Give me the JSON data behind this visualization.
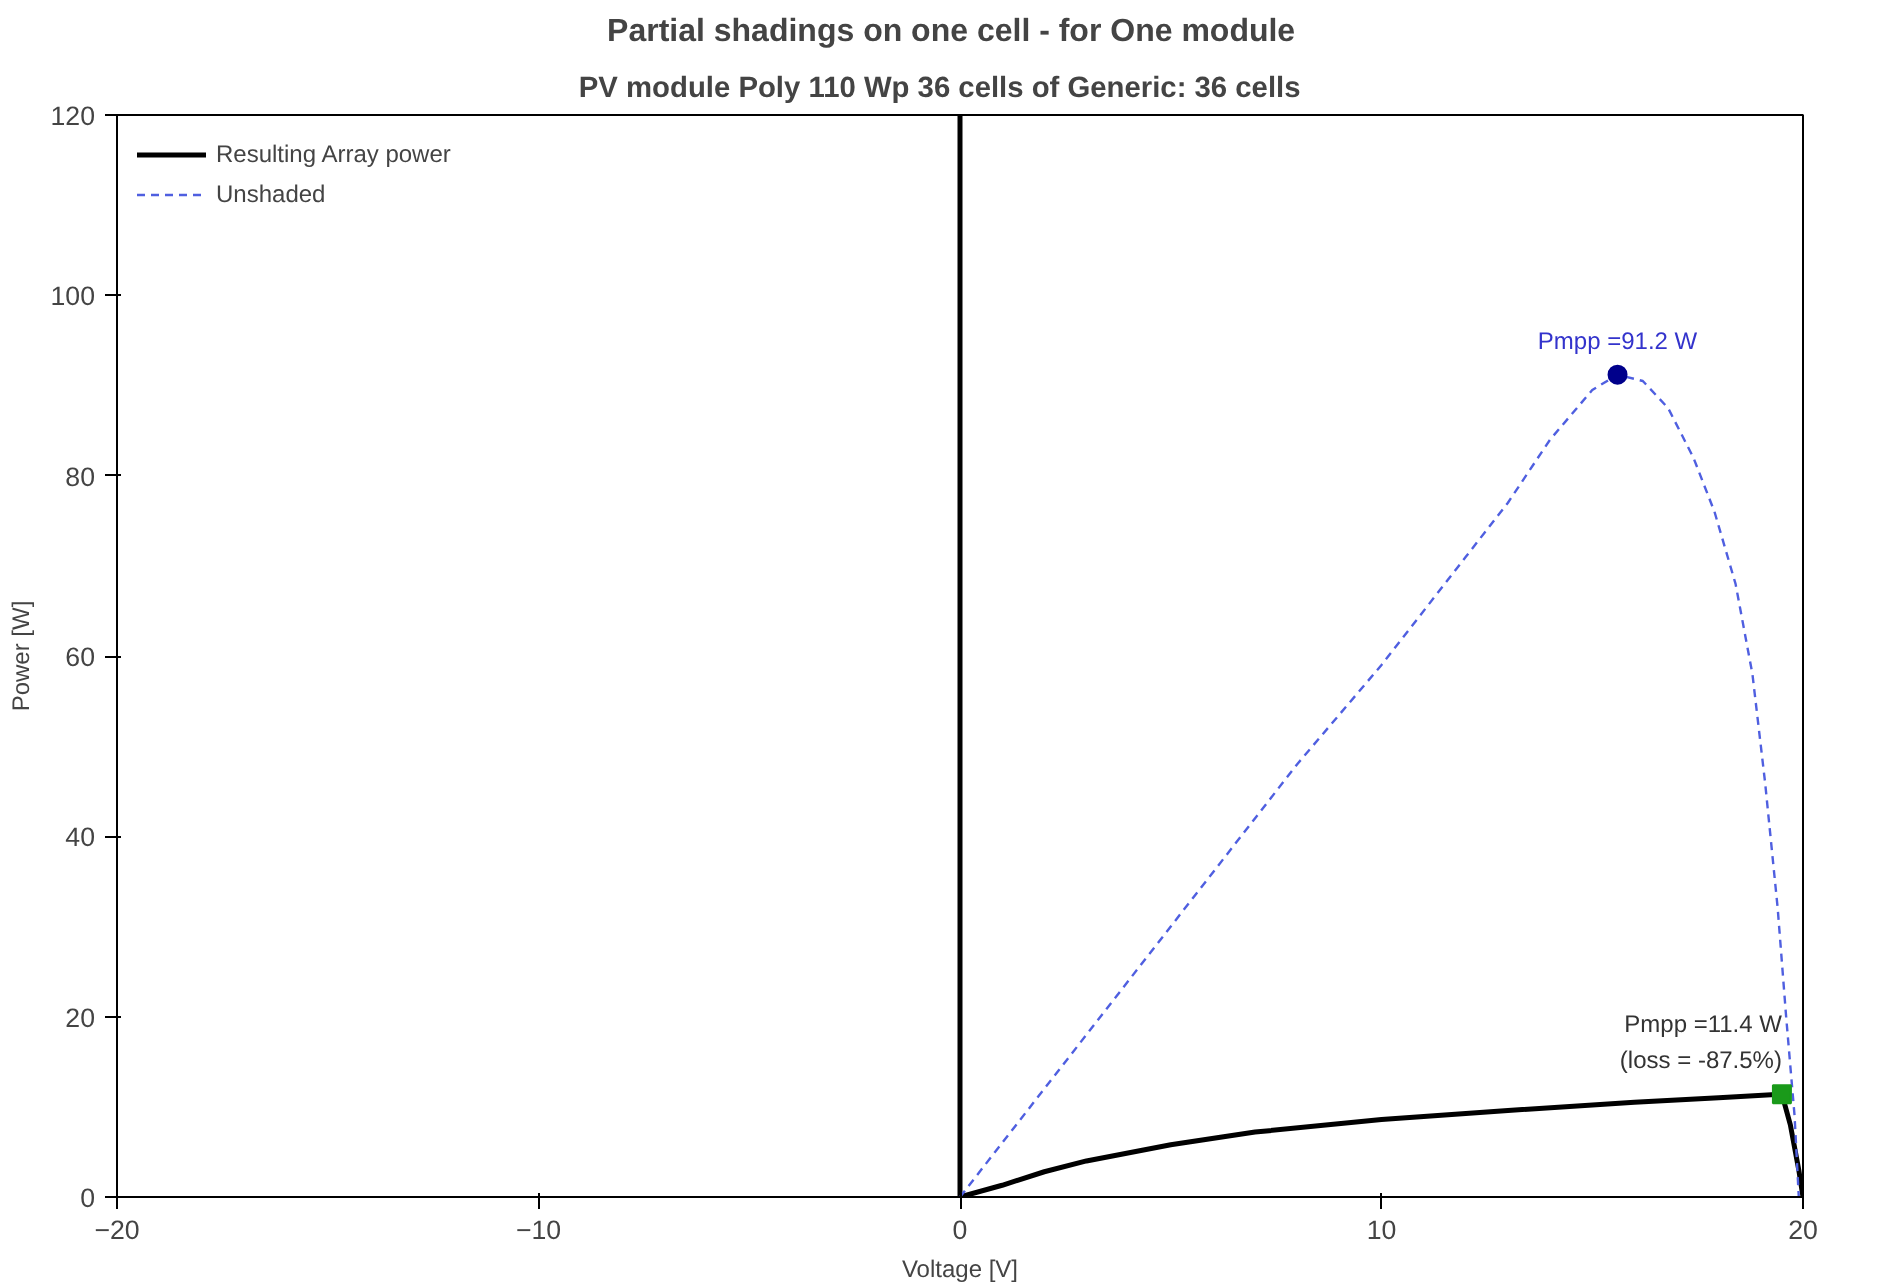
{
  "chart_data": {
    "type": "line",
    "title": "Partial shadings on one cell  -  for One module",
    "subtitle": "PV module   Poly 110 Wp  36 cells  of  Generic: 36 cells",
    "xlabel": "Voltage [V]",
    "ylabel": "Power [W]",
    "xlim": [
      -20,
      20
    ],
    "xticks": [
      -20,
      -10,
      0,
      10,
      20
    ],
    "ylim": [
      0,
      120
    ],
    "yticks": [
      0,
      20,
      40,
      60,
      80,
      100,
      120
    ],
    "grid": false,
    "legend": "top left",
    "series": [
      {
        "name": "Resulting Array power",
        "color": "#000000",
        "line_style": "solid",
        "marker": "none",
        "x": [
          0,
          0,
          1,
          2,
          3,
          5,
          7,
          10,
          13,
          16,
          18,
          19.5,
          19.7,
          19.9,
          20
        ],
        "values": [
          120,
          0,
          1.3,
          2.8,
          4,
          5.8,
          7.2,
          8.6,
          9.6,
          10.5,
          11,
          11.4,
          8,
          3,
          0
        ]
      },
      {
        "name": "Unshaded",
        "color": "#4f5fe0",
        "line_style": "dashed",
        "marker": "none",
        "x": [
          0,
          2,
          5,
          8,
          10,
          12,
          13,
          14,
          15,
          15.6,
          16.2,
          16.8,
          17.4,
          17.9,
          18.4,
          18.8,
          19.1,
          19.4,
          19.6,
          19.8,
          19.9
        ],
        "values": [
          0,
          12,
          30,
          48,
          59,
          71,
          77,
          84,
          89.5,
          91.2,
          90.5,
          87.5,
          82,
          76,
          68,
          58,
          46,
          32,
          20,
          9,
          0
        ]
      },
      {
        "type": "scatter",
        "color": "#00008b",
        "marker": "circle",
        "x": [
          15.6
        ],
        "values": [
          91.2
        ]
      },
      {
        "type": "scatter",
        "color": "#1a9a1a",
        "marker": "square",
        "x": [
          19.5
        ],
        "values": [
          11.4
        ]
      }
    ],
    "annotations": [
      "Pmpp =91.2 W",
      "Pmpp =11.4 W",
      "(loss = -87.5%)"
    ]
  }
}
